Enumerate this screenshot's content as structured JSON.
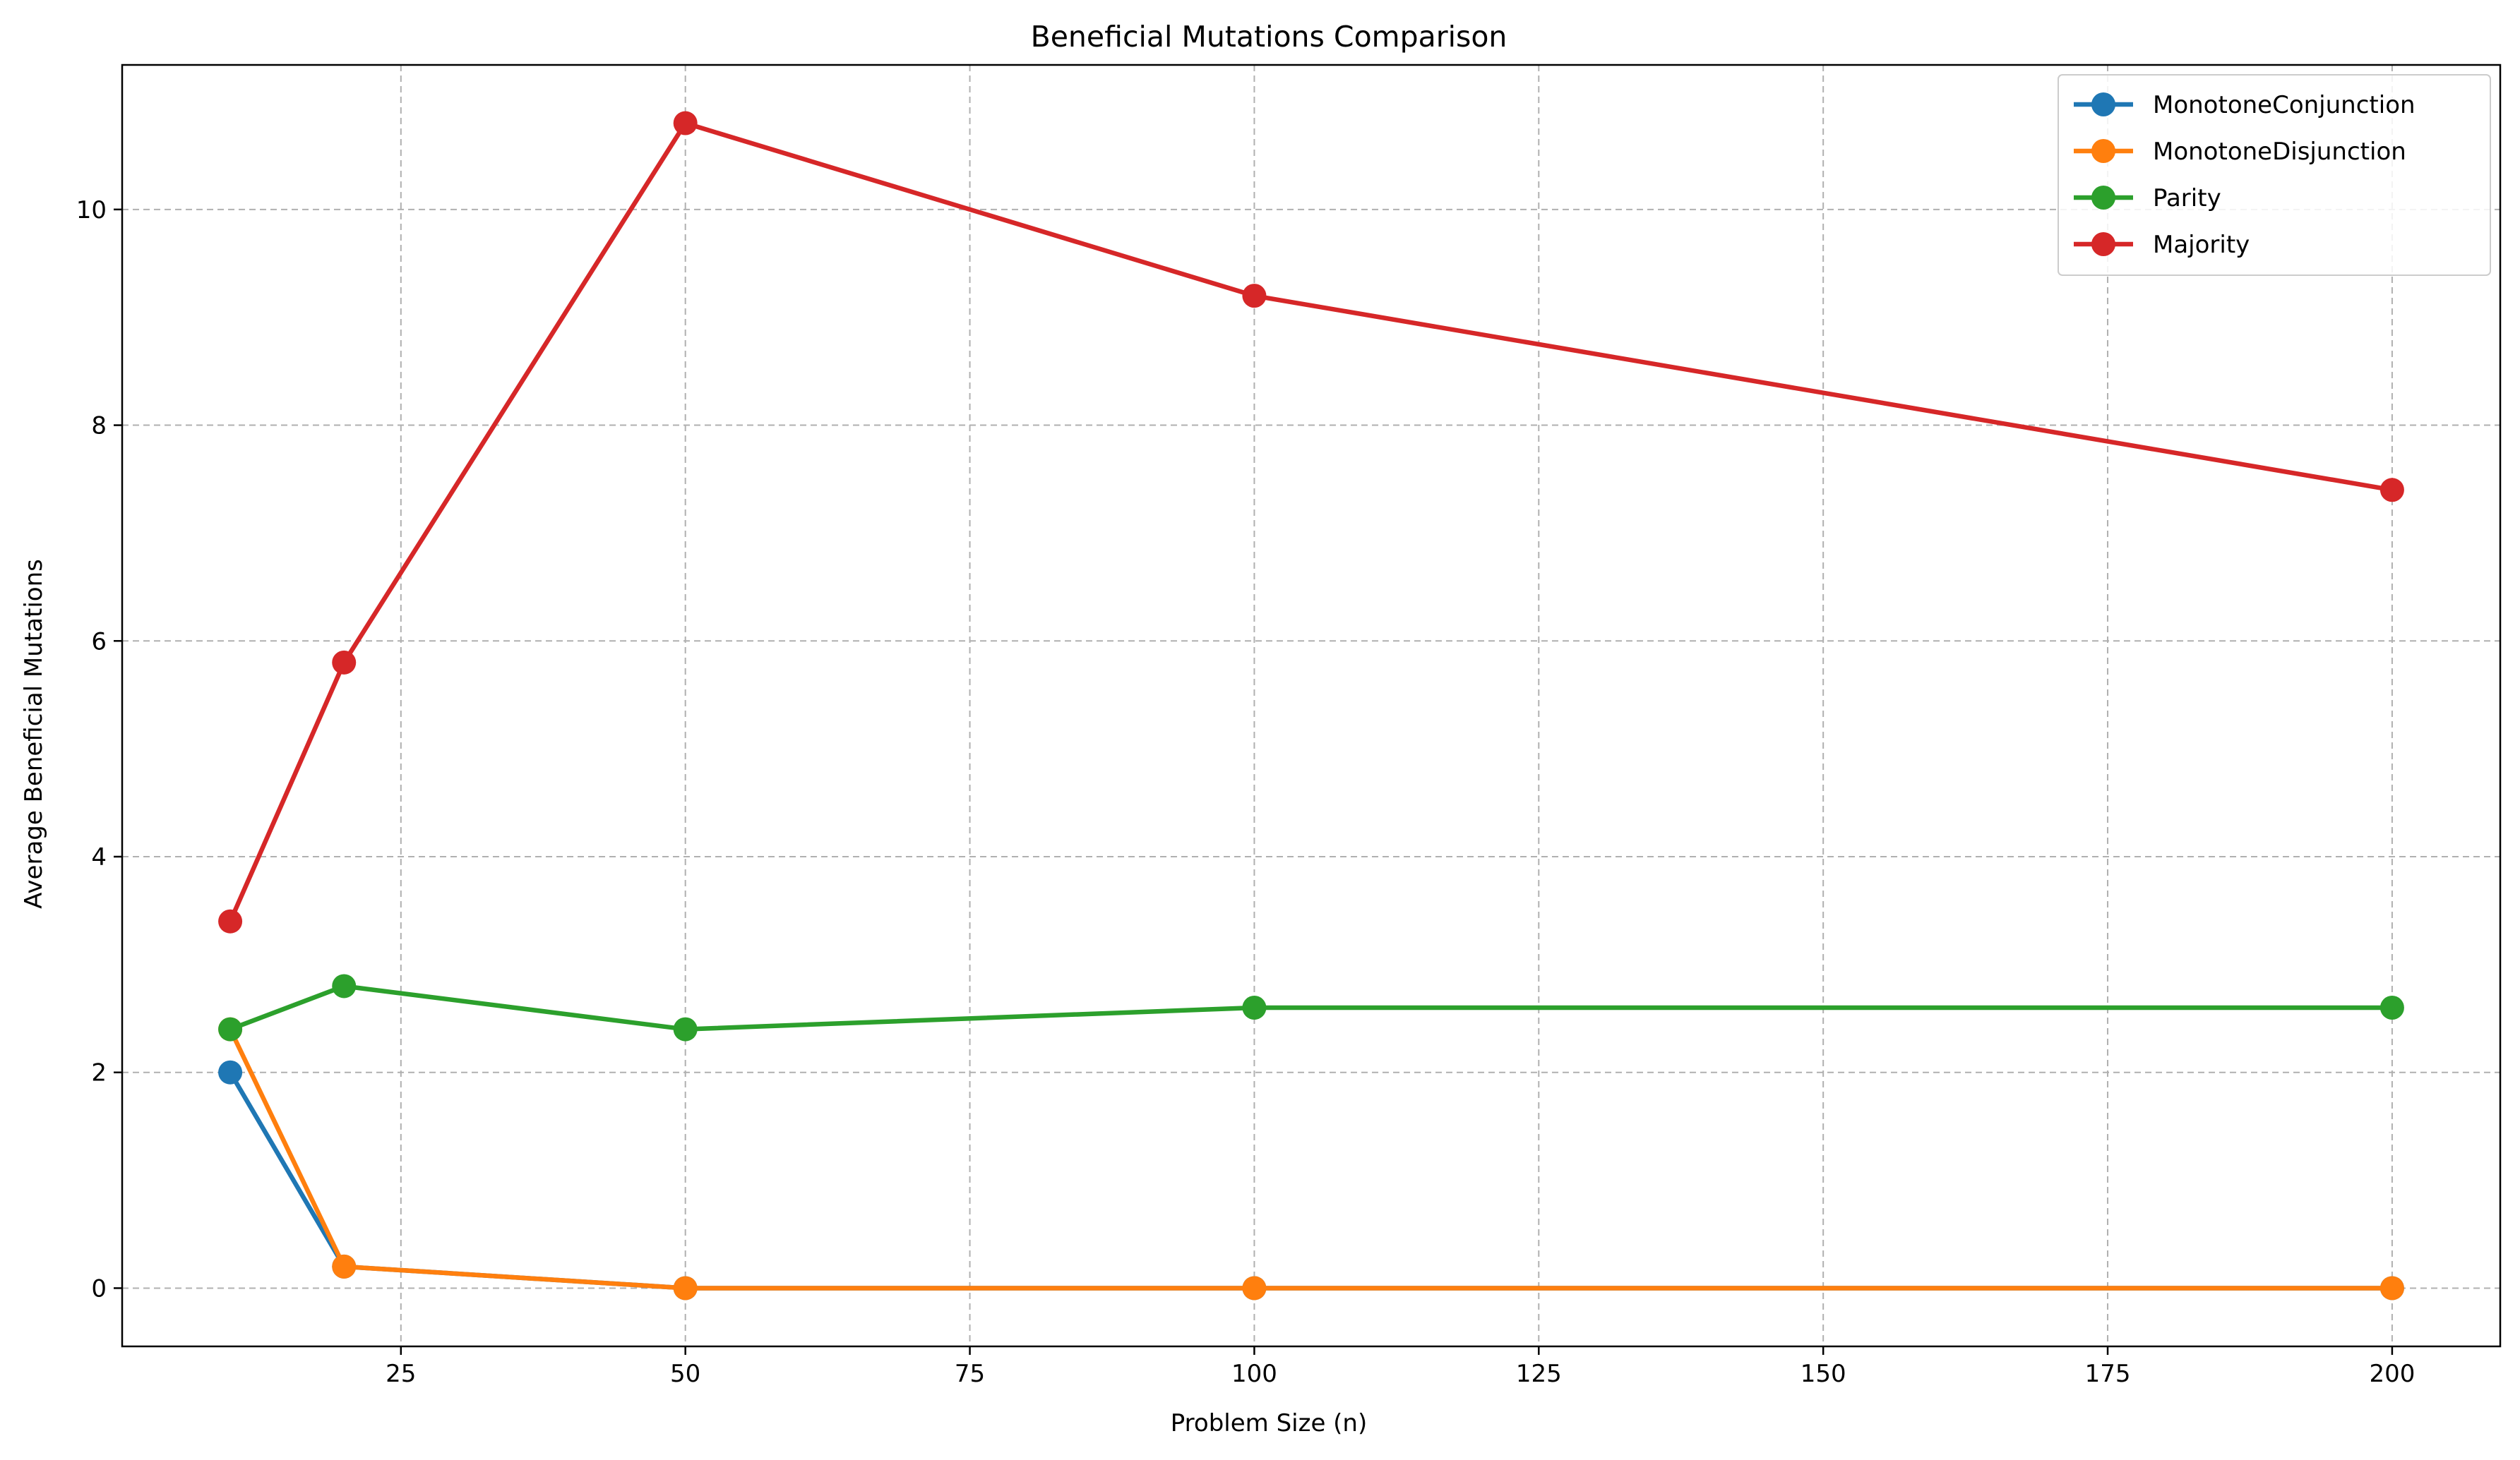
{
  "chart_data": {
    "type": "line",
    "title": "Beneficial Mutations Comparison",
    "xlabel": "Problem Size (n)",
    "ylabel": "Average Beneficial Mutations",
    "x": [
      10,
      20,
      50,
      100,
      200
    ],
    "xlim": [
      0.5,
      209.5
    ],
    "ylim": [
      -0.54,
      11.34
    ],
    "xticks": [
      25,
      50,
      75,
      100,
      125,
      150,
      175,
      200
    ],
    "yticks": [
      0,
      2,
      4,
      6,
      8,
      10
    ],
    "grid": true,
    "legend_position": "top-right",
    "series": [
      {
        "name": "MonotoneConjunction",
        "color": "#1f77b4",
        "values": [
          2.0,
          0.2,
          0.0,
          0.0,
          0.0
        ]
      },
      {
        "name": "MonotoneDisjunction",
        "color": "#ff7f0e",
        "values": [
          2.4,
          0.2,
          0.0,
          0.0,
          0.0
        ]
      },
      {
        "name": "Parity",
        "color": "#2ca02c",
        "values": [
          2.4,
          2.8,
          2.4,
          2.6,
          2.6
        ]
      },
      {
        "name": "Majority",
        "color": "#d62728",
        "values": [
          3.4,
          5.8,
          10.8,
          9.2,
          7.4
        ]
      }
    ]
  }
}
